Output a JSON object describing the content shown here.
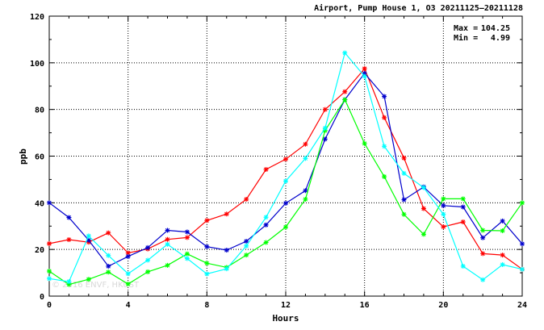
{
  "chart_data": {
    "type": "line",
    "title": "Airport, Pump House 1, O3 20211125–20211128",
    "xlabel": "Hours",
    "ylabel": "ppb",
    "xlim": [
      0,
      24
    ],
    "ylim": [
      0,
      120
    ],
    "x_ticks": [
      0,
      4,
      8,
      12,
      16,
      20,
      24
    ],
    "y_ticks": [
      0,
      20,
      40,
      60,
      80,
      100,
      120
    ],
    "grid": true,
    "stats": {
      "max_label": "Max =",
      "max_value": "104.25",
      "min_label": "Min =",
      "min_value": "4.99"
    },
    "watermark": "© 2016 ENVF, HKUST",
    "x": [
      0,
      1,
      2,
      3,
      4,
      5,
      6,
      7,
      8,
      9,
      10,
      11,
      12,
      13,
      14,
      15,
      16,
      17,
      18,
      19,
      20,
      21,
      22,
      23,
      24
    ],
    "series": [
      {
        "color": "#ff0000",
        "values": [
          22.5,
          24.2,
          23.1,
          27.1,
          18.5,
          20.2,
          24.3,
          25.1,
          32.4,
          35.2,
          41.5,
          54.3,
          58.7,
          65.1,
          80.0,
          87.6,
          97.5,
          76.5,
          59.2,
          37.5,
          29.7,
          31.8,
          18.2,
          17.6,
          11.5
        ]
      },
      {
        "color": "#0000cc",
        "values": [
          40.0,
          33.7,
          24.0,
          12.8,
          17.0,
          20.8,
          28.2,
          27.5,
          21.2,
          19.7,
          23.5,
          30.5,
          39.8,
          45.2,
          67.3,
          84.2,
          95.5,
          85.6,
          41.3,
          46.8,
          38.8,
          38.2,
          25.0,
          32.2,
          22.4
        ]
      },
      {
        "color": "#00ff00",
        "values": [
          10.7,
          4.99,
          7.2,
          10.3,
          5.2,
          10.4,
          13.2,
          18.1,
          14.1,
          12.3,
          17.6,
          23.0,
          29.6,
          41.5,
          71.0,
          84.2,
          65.4,
          51.2,
          35.0,
          26.5,
          41.7,
          41.7,
          28.2,
          28.0,
          40.0
        ]
      },
      {
        "color": "#00ffff",
        "values": [
          7.5,
          6.2,
          25.8,
          17.4,
          9.6,
          15.4,
          22.2,
          16.1,
          9.5,
          11.7,
          21.5,
          33.8,
          49.3,
          59.0,
          72.0,
          104.25,
          94.2,
          64.2,
          52.6,
          46.5,
          35.1,
          12.8,
          7.0,
          13.5,
          11.5
        ]
      }
    ]
  }
}
